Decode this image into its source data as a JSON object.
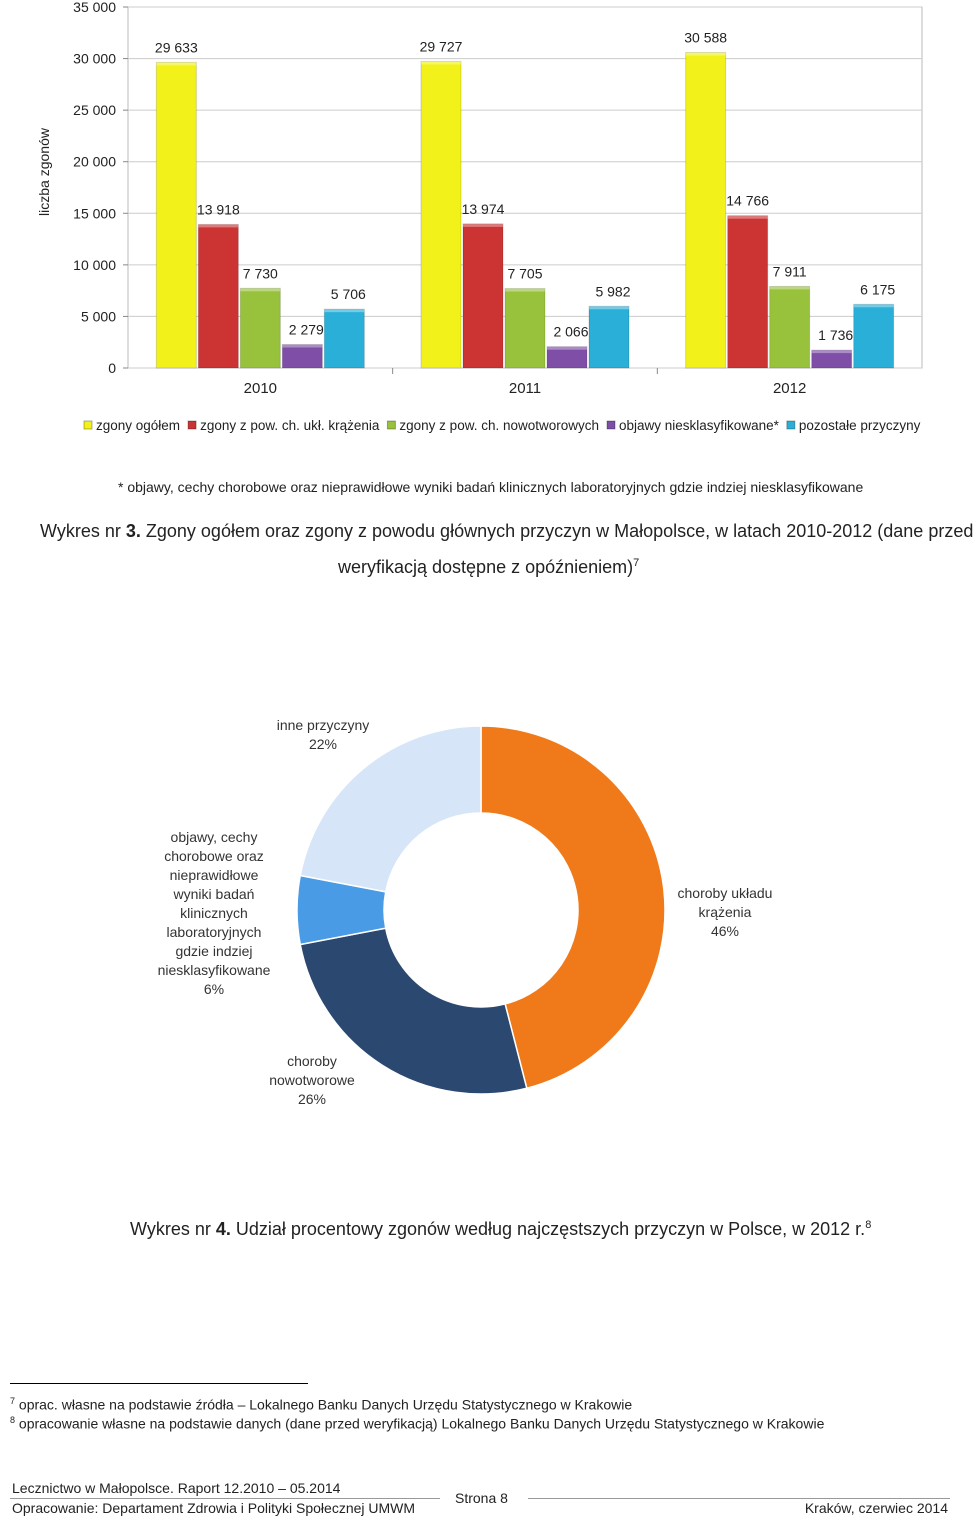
{
  "chart_data": [
    {
      "type": "bar",
      "ylabel": "liczba zgonów",
      "ylim": [
        0,
        35000
      ],
      "yticks": [
        "0",
        "5 000",
        "10 000",
        "15 000",
        "20 000",
        "25 000",
        "30 000",
        "35 000"
      ],
      "ytick_values": [
        0,
        5000,
        10000,
        15000,
        20000,
        25000,
        30000,
        35000
      ],
      "categories": [
        "2010",
        "2011",
        "2012"
      ],
      "grid": true,
      "legend_position": "bottom",
      "series": [
        {
          "name": "zgony ogółem",
          "color": "#f2f21a",
          "values": [
            29633,
            29727,
            30588
          ],
          "labels": [
            "29 633",
            "29 727",
            "30 588"
          ]
        },
        {
          "name": "zgony z pow. ch. ukł. krążenia",
          "color": "#cc3333",
          "values": [
            13918,
            13974,
            14766
          ],
          "labels": [
            "13 918",
            "13 974",
            "14 766"
          ]
        },
        {
          "name": "zgony z pow. ch. nowotworowych",
          "color": "#99c23c",
          "values": [
            7730,
            7705,
            7911
          ],
          "labels": [
            "7 730",
            "7 705",
            "7 911"
          ]
        },
        {
          "name": "objawy niesklasyfikowane*",
          "color": "#7f4fa8",
          "values": [
            2279,
            2066,
            1736
          ],
          "labels": [
            "2 279",
            "2 066",
            "1 736"
          ]
        },
        {
          "name": "pozostałe przyczyny",
          "color": "#2ab0d8",
          "values": [
            5706,
            5982,
            6175
          ],
          "labels": [
            "5 706",
            "5 982",
            "6 175"
          ]
        }
      ]
    },
    {
      "type": "pie",
      "categories": [
        "choroby układu krążenia",
        "choroby nowotworowe",
        "objawy, cechy chorobowe oraz nieprawidłowe wyniki badań klinicznych laboratoryjnych gdzie indziej niesklasyfikowane",
        "inne przyczyny"
      ],
      "values": [
        46,
        26,
        6,
        22
      ],
      "value_labels": [
        "46%",
        "26%",
        "6%",
        "22%"
      ],
      "colors": [
        "#f07a1a",
        "#2b4870",
        "#4a9be6",
        "#d6e6f8"
      ]
    }
  ],
  "texts": {
    "footnote_star": "* objawy, cechy chorobowe oraz nieprawidłowe wyniki badań klinicznych laboratoryjnych gdzie indziej niesklasyfikowane",
    "caption3_prefix": "Wykres nr",
    "caption3_num": "3.",
    "caption3_line1": "Zgony ogółem oraz zgony z powodu głównych przyczyn w Małopolsce, w latach 2010-2012 (dane przed",
    "caption3_line2": "weryfikacją dostępne z opóźnieniem)",
    "caption3_sup": "7",
    "caption4_prefix": "Wykres nr",
    "caption4_num": "4.",
    "caption4_text": "Udział procentowy zgonów według najczęstszych przyczyn w Polsce, w 2012 r.",
    "caption4_sup": "8",
    "footnote7_num": "7",
    "footnote7_text": "oprac. własne na podstawie źródła – Lokalnego Banku Danych Urzędu Statystycznego w Krakowie",
    "footnote8_num": "8",
    "footnote8_text": "opracowanie własne na podstawie danych (dane przed weryfikacją) Lokalnego Banku Danych Urzędu Statystycznego w Krakowie",
    "footer_left_top": "Lecznictwo w Małopolsce. Raport 12.2010 – 05.2014",
    "footer_left_bottom": "Opracowanie: Departament Zdrowia i Polityki Społecznej UMWM",
    "footer_center": "Strona 8",
    "footer_right": "Kraków, czerwiec 2014"
  }
}
